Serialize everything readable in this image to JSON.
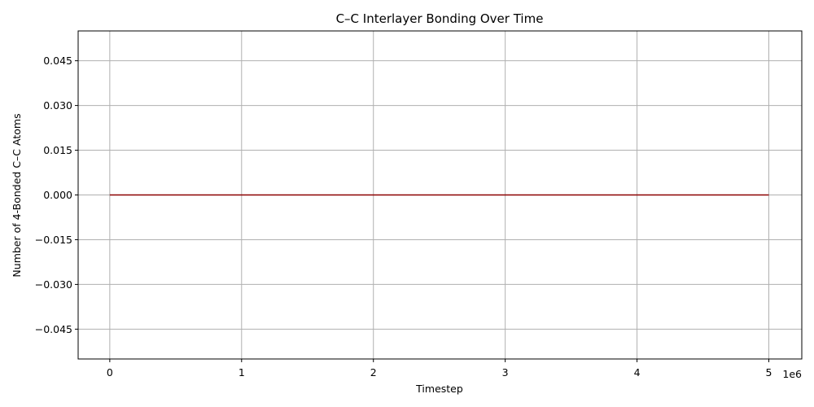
{
  "chart_data": {
    "type": "line",
    "title": "C–C Interlayer Bonding Over Time",
    "xlabel": "Timestep",
    "ylabel": "Number of 4-Bonded C–C Atoms",
    "x_offset_label": "1e6",
    "xlim": [
      -240000,
      5250000
    ],
    "ylim": [
      -0.055,
      0.055
    ],
    "x_ticks": [
      0,
      1000000,
      2000000,
      3000000,
      4000000,
      5000000
    ],
    "x_tick_labels": [
      "0",
      "1",
      "2",
      "3",
      "4",
      "5"
    ],
    "y_ticks": [
      -0.045,
      -0.03,
      -0.015,
      0.0,
      0.015,
      0.03,
      0.045
    ],
    "y_tick_labels": [
      "−0.045",
      "−0.030",
      "−0.015",
      "0.000",
      "0.015",
      "0.030",
      "0.045"
    ],
    "grid": true,
    "series": [
      {
        "color": "#8b0000",
        "x": [
          0,
          5000000
        ],
        "y": [
          0,
          0
        ]
      }
    ]
  }
}
